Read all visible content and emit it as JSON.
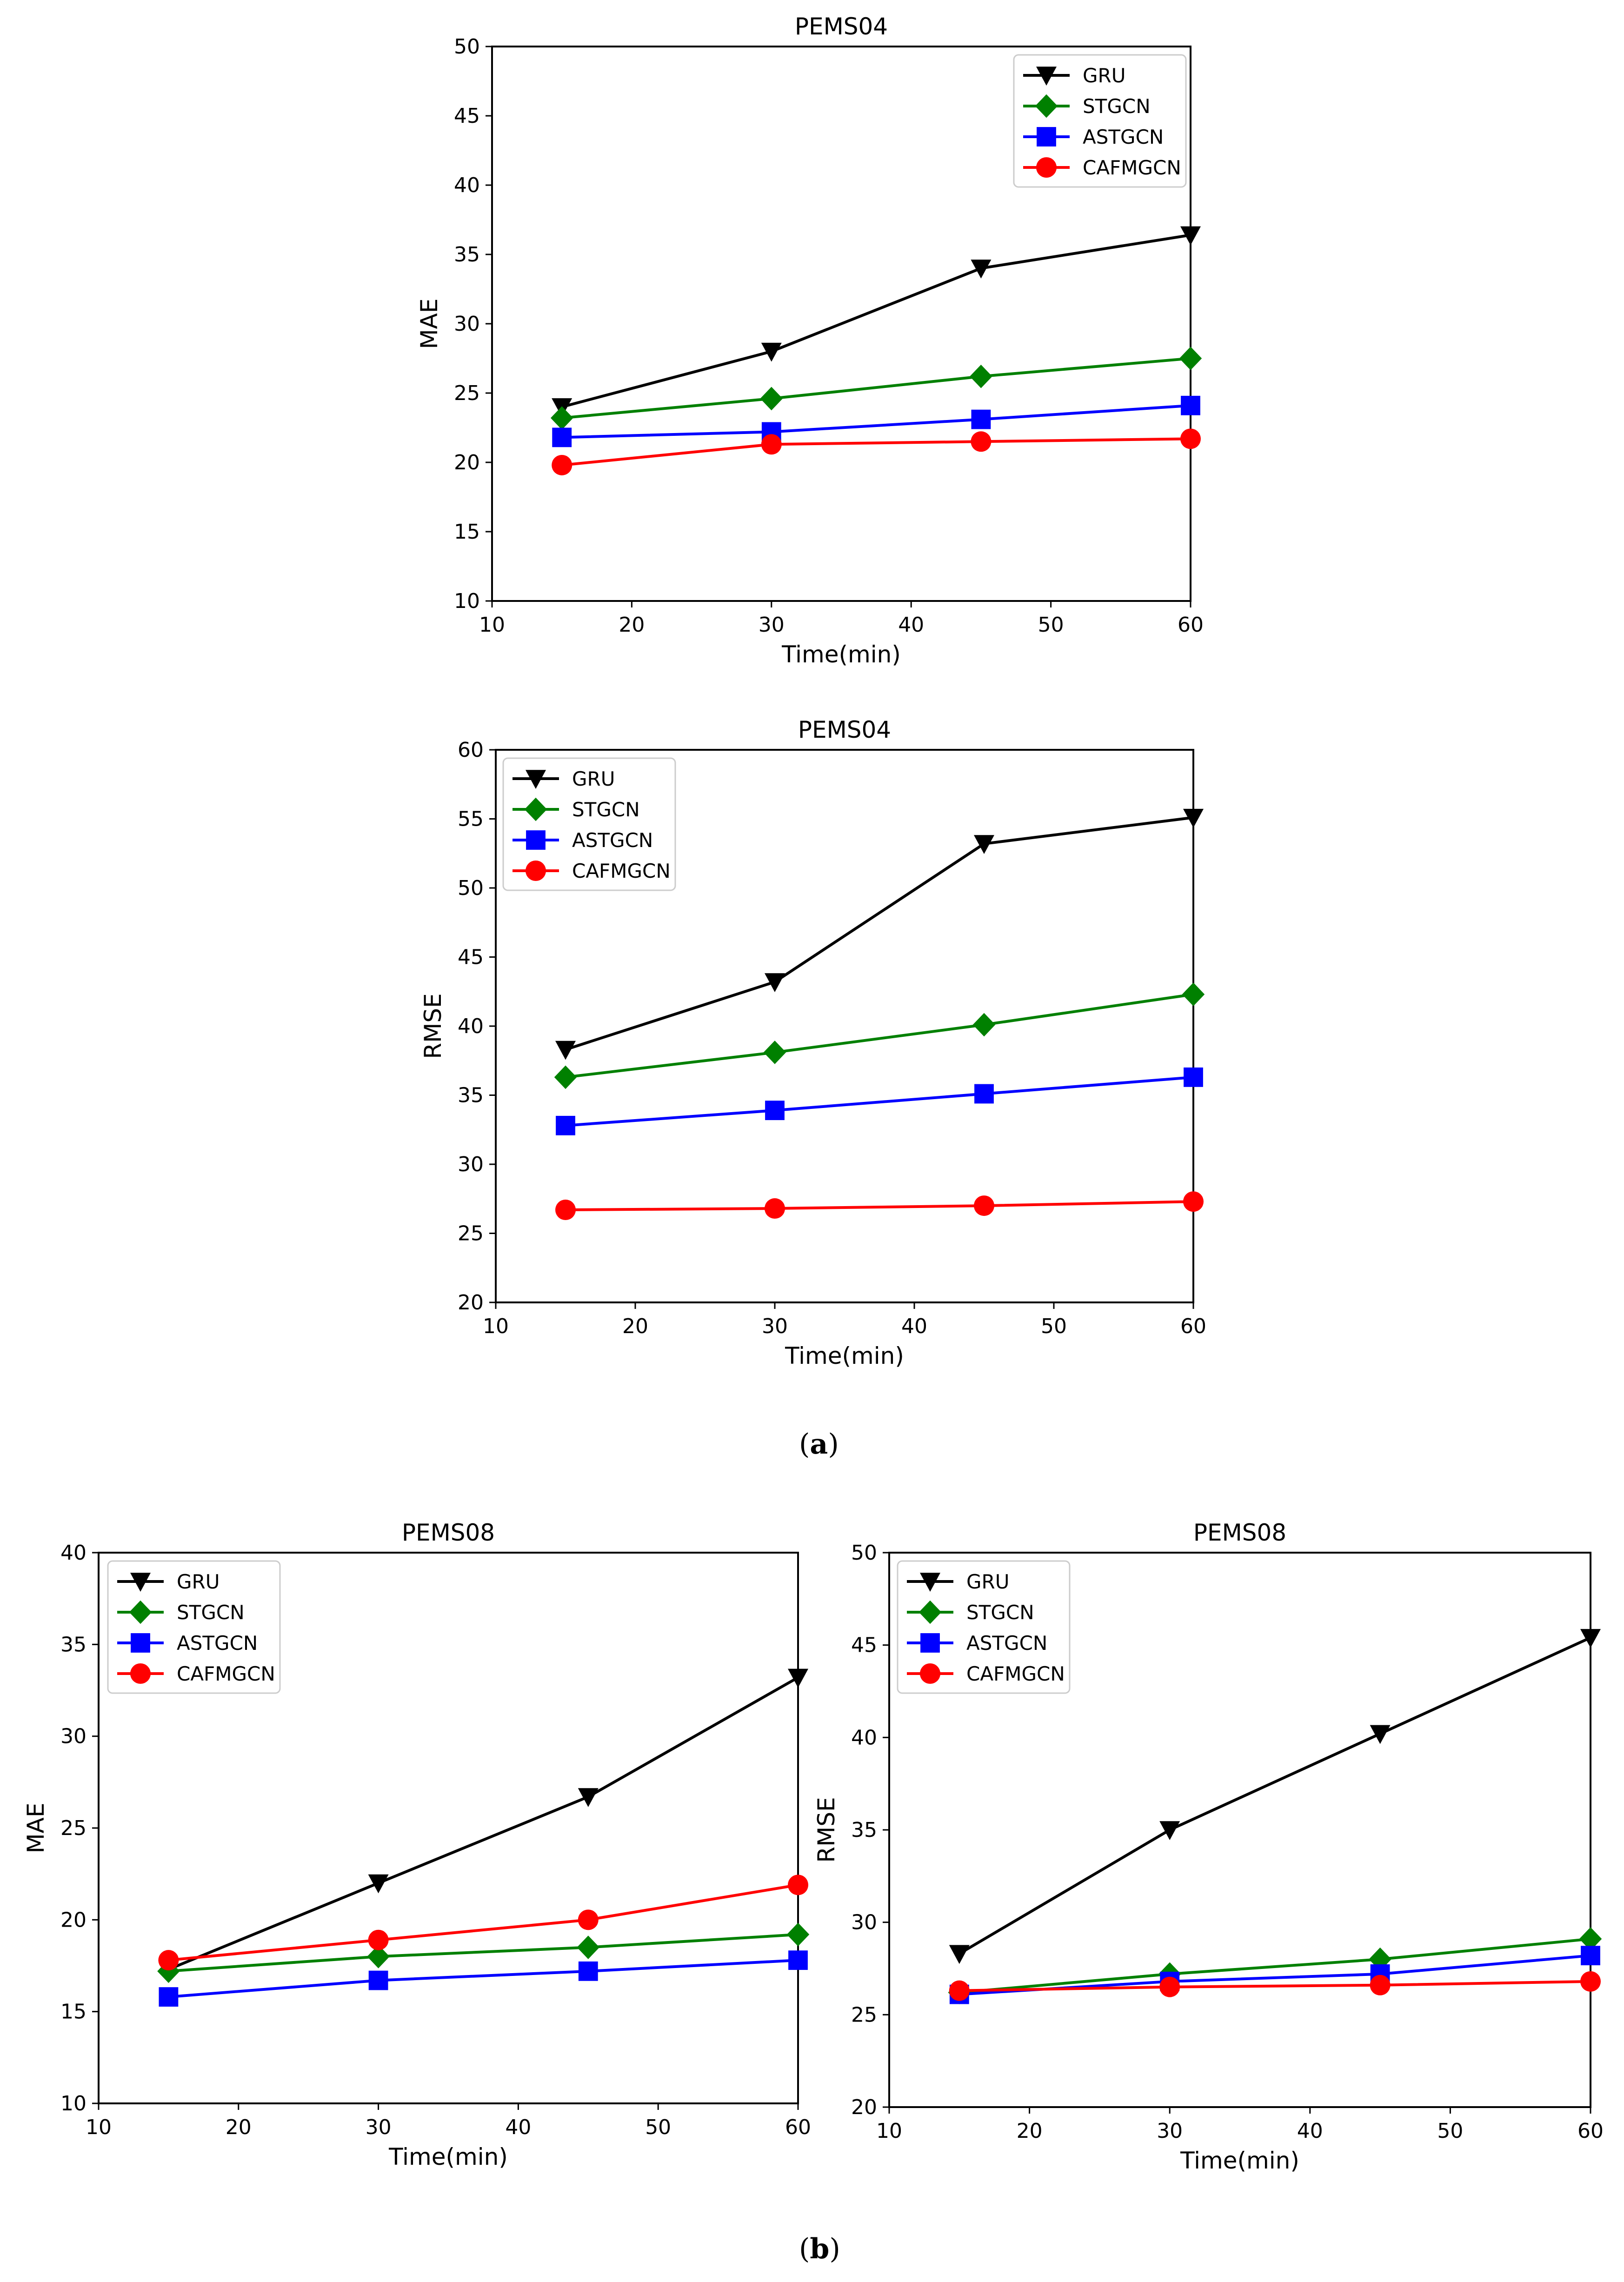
{
  "captions": {
    "a": "a",
    "b": "b"
  },
  "chart_data": [
    {
      "type": "line",
      "title": "PEMS04",
      "xlabel": "Time(min)",
      "ylabel": "MAE",
      "xlim": [
        10,
        60
      ],
      "ylim": [
        10,
        50
      ],
      "xticks": [
        10,
        20,
        30,
        40,
        50,
        60
      ],
      "yticks": [
        10,
        15,
        20,
        25,
        30,
        35,
        40,
        45,
        50
      ],
      "legend": "top-right",
      "x": [
        15,
        30,
        45,
        60
      ],
      "series": [
        {
          "name": "GRU",
          "color": "#000000",
          "marker": "triangle-down",
          "values": [
            24.0,
            28.0,
            34.0,
            36.4
          ]
        },
        {
          "name": "STGCN",
          "color": "#008000",
          "marker": "diamond",
          "values": [
            23.2,
            24.6,
            26.2,
            27.5
          ]
        },
        {
          "name": "ASTGCN",
          "color": "#0000ff",
          "marker": "square",
          "values": [
            21.8,
            22.2,
            23.1,
            24.1
          ]
        },
        {
          "name": "CAFMGCN",
          "color": "#ff0000",
          "marker": "circle",
          "values": [
            19.8,
            21.3,
            21.5,
            21.7
          ]
        }
      ]
    },
    {
      "type": "line",
      "title": "PEMS04",
      "xlabel": "Time(min)",
      "ylabel": "RMSE",
      "xlim": [
        10,
        60
      ],
      "ylim": [
        20,
        60
      ],
      "xticks": [
        10,
        20,
        30,
        40,
        50,
        60
      ],
      "yticks": [
        20,
        25,
        30,
        35,
        40,
        45,
        50,
        55,
        60
      ],
      "legend": "top-left",
      "x": [
        15,
        30,
        45,
        60
      ],
      "series": [
        {
          "name": "GRU",
          "color": "#000000",
          "marker": "triangle-down",
          "values": [
            38.3,
            43.2,
            53.2,
            55.1
          ]
        },
        {
          "name": "STGCN",
          "color": "#008000",
          "marker": "diamond",
          "values": [
            36.3,
            38.1,
            40.1,
            42.3
          ]
        },
        {
          "name": "ASTGCN",
          "color": "#0000ff",
          "marker": "square",
          "values": [
            32.8,
            33.9,
            35.1,
            36.3
          ]
        },
        {
          "name": "CAFMGCN",
          "color": "#ff0000",
          "marker": "circle",
          "values": [
            26.7,
            26.8,
            27.0,
            27.3
          ]
        }
      ]
    },
    {
      "type": "line",
      "title": "PEMS08",
      "xlabel": "Time(min)",
      "ylabel": "MAE",
      "xlim": [
        10,
        60
      ],
      "ylim": [
        10,
        40
      ],
      "xticks": [
        10,
        20,
        30,
        40,
        50,
        60
      ],
      "yticks": [
        10,
        15,
        20,
        25,
        30,
        35,
        40
      ],
      "legend": "top-left",
      "x": [
        15,
        30,
        45,
        60
      ],
      "series": [
        {
          "name": "GRU",
          "color": "#000000",
          "marker": "triangle-down",
          "values": [
            17.3,
            22.0,
            26.7,
            33.2
          ]
        },
        {
          "name": "STGCN",
          "color": "#008000",
          "marker": "diamond",
          "values": [
            17.2,
            18.0,
            18.5,
            19.2
          ]
        },
        {
          "name": "ASTGCN",
          "color": "#0000ff",
          "marker": "square",
          "values": [
            15.8,
            16.7,
            17.2,
            17.8
          ]
        },
        {
          "name": "CAFMGCN",
          "color": "#ff0000",
          "marker": "circle",
          "values": [
            17.8,
            18.9,
            20.0,
            21.9
          ]
        }
      ]
    },
    {
      "type": "line",
      "title": "PEMS08",
      "xlabel": "Time(min)",
      "ylabel": "RMSE",
      "xlim": [
        10,
        60
      ],
      "ylim": [
        20,
        50
      ],
      "xticks": [
        10,
        20,
        30,
        40,
        50,
        60
      ],
      "yticks": [
        20,
        25,
        30,
        35,
        40,
        45,
        50
      ],
      "legend": "top-left",
      "x": [
        15,
        30,
        45,
        60
      ],
      "series": [
        {
          "name": "GRU",
          "color": "#000000",
          "marker": "triangle-down",
          "values": [
            28.3,
            35.0,
            40.2,
            45.4
          ]
        },
        {
          "name": "STGCN",
          "color": "#008000",
          "marker": "diamond",
          "values": [
            26.2,
            27.2,
            28.0,
            29.1
          ]
        },
        {
          "name": "ASTGCN",
          "color": "#0000ff",
          "marker": "square",
          "values": [
            26.1,
            26.8,
            27.2,
            28.2
          ]
        },
        {
          "name": "CAFMGCN",
          "color": "#ff0000",
          "marker": "circle",
          "values": [
            26.3,
            26.5,
            26.6,
            26.8
          ]
        }
      ]
    }
  ]
}
